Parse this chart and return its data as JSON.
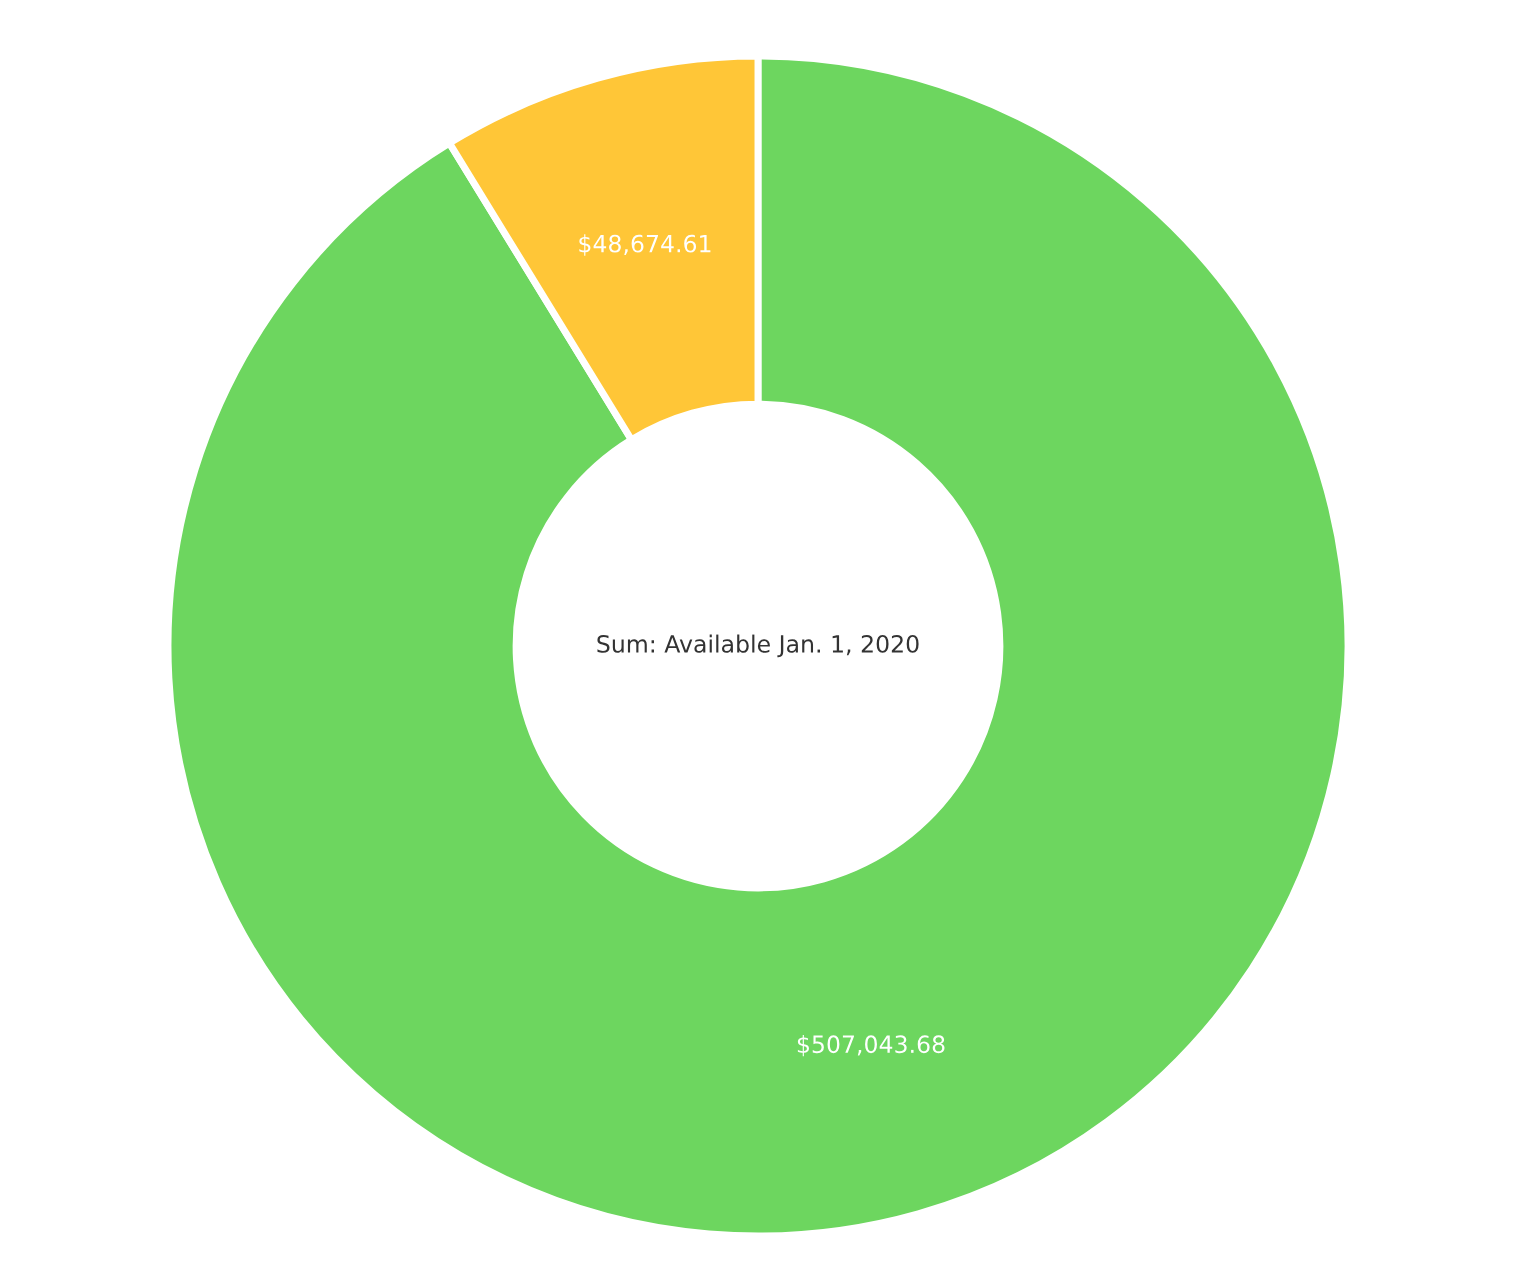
{
  "chart_data": {
    "type": "donut",
    "categories": [
      null,
      null
    ],
    "values": [
      507043.68,
      48674.61
    ],
    "colors": [
      "#6dd65f",
      "#ffc637"
    ],
    "value_labels": [
      "$507,043.68",
      "$48,674.61"
    ],
    "annotations": [
      "Sum: Available Jan. 1, 2020"
    ]
  }
}
